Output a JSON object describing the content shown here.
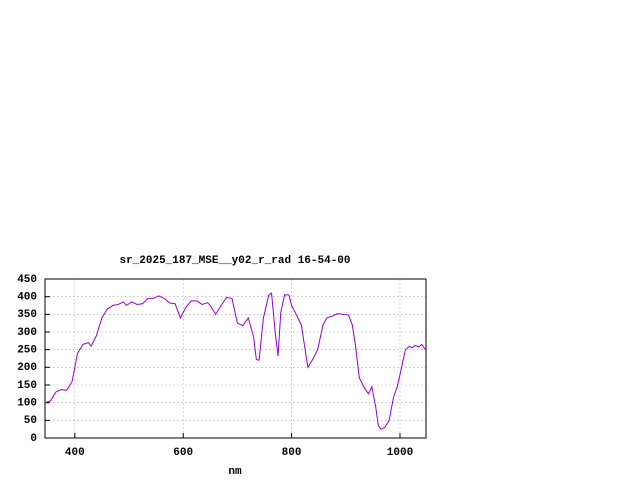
{
  "chart_data": {
    "type": "line",
    "title": "sr_2025_187_MSE__y02_r_rad 16-54-00",
    "x_label": "nm",
    "x": [
      345,
      355,
      365,
      375,
      385,
      395,
      405,
      415,
      425,
      430,
      440,
      450,
      460,
      470,
      480,
      490,
      495,
      505,
      515,
      525,
      535,
      545,
      555,
      565,
      575,
      585,
      595,
      605,
      615,
      625,
      635,
      645,
      650,
      660,
      670,
      680,
      690,
      700,
      710,
      720,
      730,
      735,
      740,
      748,
      758,
      763,
      770,
      775,
      780,
      787,
      795,
      800,
      810,
      818,
      825,
      830,
      840,
      848,
      858,
      865,
      875,
      885,
      895,
      905,
      912,
      918,
      925,
      935,
      942,
      948,
      955,
      960,
      965,
      972,
      980,
      988,
      995,
      1003,
      1010,
      1018,
      1022,
      1028,
      1035,
      1040,
      1048
    ],
    "series": [
      {
        "color": "#9400d3",
        "values": [
          100,
          105,
          130,
          137,
          135,
          160,
          240,
          265,
          270,
          260,
          290,
          340,
          365,
          375,
          378,
          385,
          375,
          385,
          378,
          380,
          395,
          395,
          402,
          395,
          382,
          380,
          340,
          370,
          388,
          388,
          378,
          383,
          375,
          350,
          375,
          398,
          395,
          325,
          318,
          340,
          285,
          222,
          220,
          340,
          405,
          410,
          295,
          232,
          355,
          405,
          405,
          375,
          345,
          320,
          250,
          200,
          225,
          250,
          320,
          340,
          345,
          352,
          350,
          348,
          320,
          260,
          170,
          140,
          125,
          145,
          90,
          35,
          25,
          30,
          50,
          115,
          145,
          200,
          250,
          260,
          255,
          262,
          258,
          265,
          248
        ]
      }
    ],
    "xlim": [
      345,
      1048
    ],
    "ylim": [
      0,
      450
    ],
    "xticks": [
      400,
      600,
      800,
      1000
    ],
    "yticks": [
      0,
      50,
      100,
      150,
      200,
      250,
      300,
      350,
      400,
      450
    ],
    "grid": true
  }
}
